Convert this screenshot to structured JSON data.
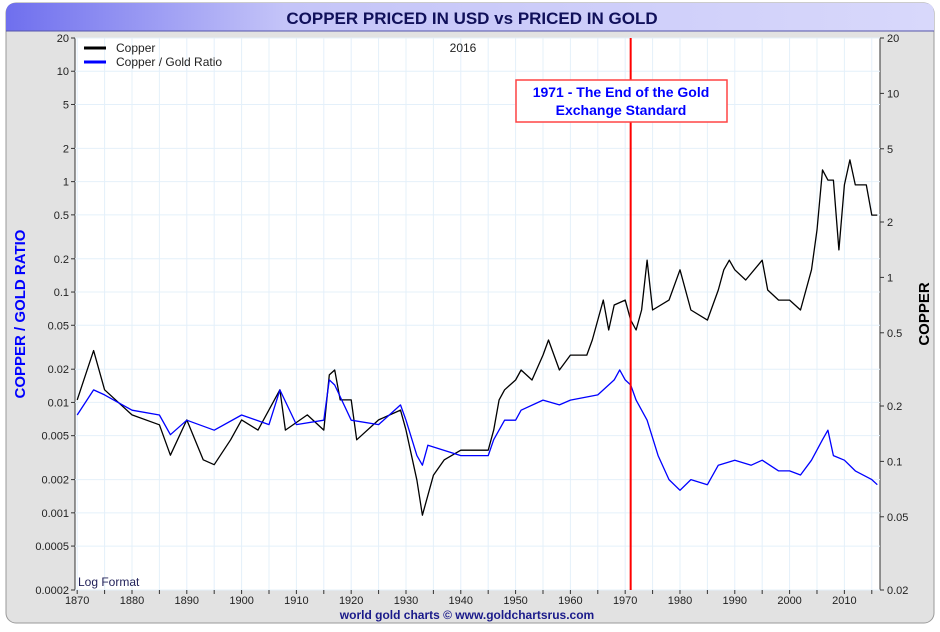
{
  "chart_data": {
    "type": "line",
    "title": "COPPER PRICED IN USD vs PRICED IN GOLD",
    "year_label": "2016",
    "footer": "world gold charts © www.goldchartsrus.com",
    "format_label": "Log Format",
    "left_axis": {
      "label": "COPPER / GOLD RATIO",
      "scale": "log",
      "range": [
        0.0002,
        20
      ],
      "ticks": [
        "20",
        "10",
        "5",
        "2",
        "1",
        "0.5",
        "0.2",
        "0.1",
        "0.05",
        "0.02",
        "0.01",
        "0.005",
        "0.002",
        "0.001",
        "0.0005",
        "0.0002"
      ]
    },
    "right_axis": {
      "label": "COPPER",
      "scale": "log",
      "range": [
        0.02,
        20
      ],
      "ticks": [
        "20",
        "10",
        "5",
        "2",
        "1",
        "0.5",
        "0.2",
        "0.1",
        "0.05",
        "0.02"
      ]
    },
    "x_axis": {
      "range": [
        1869,
        2016
      ],
      "ticks": [
        "1870",
        "1880",
        "1890",
        "1900",
        "1910",
        "1920",
        "1930",
        "1940",
        "1950",
        "1960",
        "1970",
        "1980",
        "1990",
        "2000",
        "2010"
      ]
    },
    "legend": {
      "placement": "top-left",
      "entries": [
        {
          "label": "Copper",
          "color": "#000000"
        },
        {
          "label": "Copper / Gold Ratio",
          "color": "#0000ff"
        }
      ]
    },
    "annotation": {
      "year": 1971,
      "line1": "1971 - The End of the Gold",
      "line2": "Exchange Standard",
      "line_color": "#ff0000",
      "text_color": "#0000ff"
    },
    "series": [
      {
        "name": "Copper",
        "axis": "right",
        "color": "#000000",
        "x": [
          1870,
          1873,
          1875,
          1880,
          1885,
          1887,
          1890,
          1893,
          1895,
          1898,
          1900,
          1903,
          1907,
          1908,
          1912,
          1915,
          1916,
          1917,
          1918,
          1920,
          1921,
          1925,
          1929,
          1930,
          1932,
          1933,
          1935,
          1937,
          1940,
          1945,
          1946,
          1947,
          1948,
          1950,
          1951,
          1953,
          1955,
          1956,
          1958,
          1960,
          1963,
          1964,
          1966,
          1967,
          1968,
          1970,
          1971,
          1972,
          1973,
          1974,
          1975,
          1978,
          1980,
          1982,
          1985,
          1987,
          1988,
          1989,
          1990,
          1992,
          1995,
          1996,
          1998,
          2000,
          2002,
          2004,
          2005,
          2006,
          2007,
          2008,
          2009,
          2010,
          2011,
          2012,
          2014,
          2015,
          2016
        ],
        "y": [
          0.216,
          0.4,
          0.245,
          0.179,
          0.158,
          0.108,
          0.168,
          0.102,
          0.096,
          0.131,
          0.168,
          0.148,
          0.245,
          0.148,
          0.179,
          0.148,
          0.295,
          0.314,
          0.216,
          0.216,
          0.131,
          0.168,
          0.19,
          0.148,
          0.079,
          0.051,
          0.084,
          0.102,
          0.115,
          0.115,
          0.148,
          0.216,
          0.245,
          0.277,
          0.314,
          0.277,
          0.378,
          0.457,
          0.314,
          0.378,
          0.378,
          0.457,
          0.753,
          0.518,
          0.708,
          0.753,
          0.586,
          0.518,
          0.665,
          1.24,
          0.665,
          0.753,
          1.1,
          0.665,
          0.586,
          0.854,
          1.1,
          1.24,
          1.1,
          0.968,
          1.24,
          0.854,
          0.753,
          0.753,
          0.665,
          1.1,
          1.81,
          3.84,
          3.38,
          3.38,
          1.41,
          3.18,
          4.35,
          3.18,
          3.18,
          2.18,
          2.18
        ]
      },
      {
        "name": "Copper / Gold Ratio",
        "axis": "left",
        "color": "#0000ff",
        "x": [
          1870,
          1873,
          1875,
          1880,
          1885,
          1887,
          1890,
          1895,
          1900,
          1905,
          1907,
          1910,
          1915,
          1916,
          1917,
          1920,
          1925,
          1929,
          1930,
          1932,
          1933,
          1934,
          1940,
          1945,
          1946,
          1948,
          1950,
          1951,
          1955,
          1958,
          1960,
          1965,
          1968,
          1969,
          1970,
          1971,
          1972,
          1974,
          1976,
          1978,
          1980,
          1982,
          1985,
          1987,
          1990,
          1993,
          1995,
          1998,
          2000,
          2002,
          2004,
          2006,
          2007,
          2008,
          2010,
          2012,
          2015,
          2016
        ],
        "y": [
          0.0077,
          0.013,
          0.0117,
          0.0085,
          0.0077,
          0.0051,
          0.0069,
          0.0056,
          0.0077,
          0.0063,
          0.013,
          0.0063,
          0.0069,
          0.016,
          0.0144,
          0.0069,
          0.0063,
          0.0095,
          0.0069,
          0.0033,
          0.0027,
          0.0041,
          0.0033,
          0.0033,
          0.0046,
          0.0069,
          0.0069,
          0.0085,
          0.0105,
          0.0095,
          0.0105,
          0.0117,
          0.016,
          0.0197,
          0.016,
          0.0144,
          0.0105,
          0.0069,
          0.0033,
          0.002,
          0.0016,
          0.002,
          0.0018,
          0.0027,
          0.003,
          0.0027,
          0.003,
          0.0024,
          0.0024,
          0.0022,
          0.003,
          0.0046,
          0.0056,
          0.0033,
          0.003,
          0.0024,
          0.002,
          0.0018
        ]
      }
    ]
  }
}
